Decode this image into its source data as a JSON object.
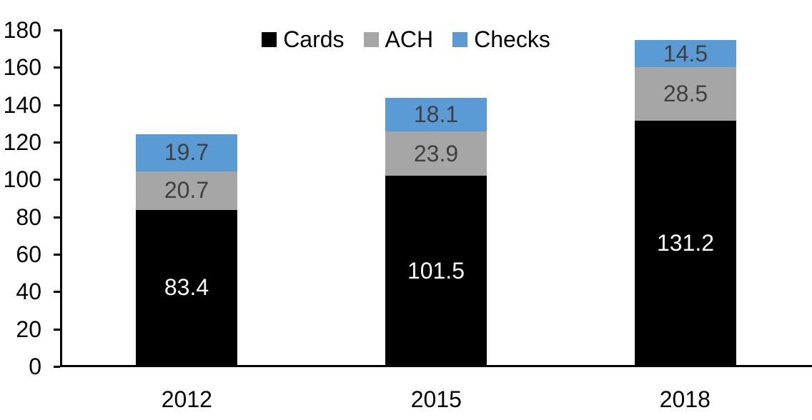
{
  "chart_data": {
    "type": "bar",
    "stacked": true,
    "title": "",
    "categories": [
      "2012",
      "2015",
      "2018"
    ],
    "series": [
      {
        "name": "Cards",
        "color": "#000000",
        "label_color": "#ffffff",
        "values": [
          83.4,
          101.5,
          131.2
        ]
      },
      {
        "name": "ACH",
        "color": "#A6A6A6",
        "label_color": "#404040",
        "values": [
          20.7,
          23.9,
          28.5
        ]
      },
      {
        "name": "Checks",
        "color": "#5B9BD5",
        "label_color": "#404040",
        "values": [
          19.7,
          18.1,
          14.5
        ]
      }
    ],
    "totals": [
      123.8,
      143.5,
      174.2
    ],
    "ylim": [
      0,
      180
    ],
    "yticks": [
      0,
      20,
      40,
      60,
      80,
      100,
      120,
      140,
      160,
      180
    ],
    "xlabel": "",
    "ylabel": "",
    "legend_position": "top-center",
    "legend_order": [
      "Cards",
      "ACH",
      "Checks"
    ],
    "grid": false,
    "data_labels": "inside-center",
    "axis_color": "#000000",
    "background_color": "#ffffff"
  }
}
